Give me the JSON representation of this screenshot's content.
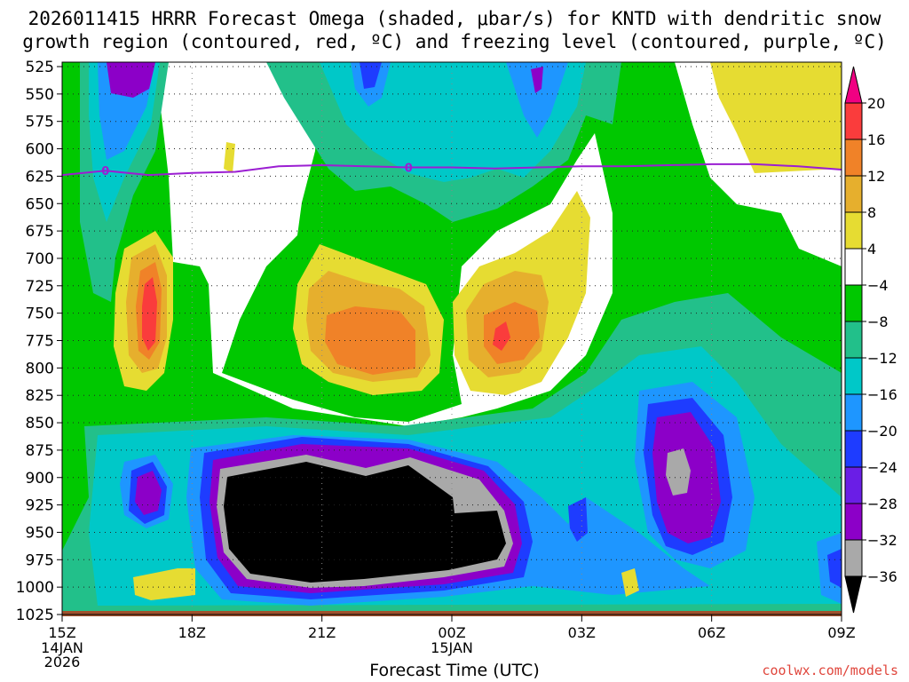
{
  "title_line1": "2026011415 HRRR Forecast Omega (shaded, μbar/s) for KNTD with dendritic snow",
  "title_line2": "growth region (contoured, red, ºC) and freezing level (contoured, purple, ºC)",
  "xlabel": "Forecast Time (UTC)",
  "credit": "coolwx.com/models",
  "chart_data": {
    "type": "heatmap",
    "title": "2026011415 HRRR Forecast Omega (shaded, μbar/s) for KNTD with dendritic snow growth region (contoured, red, ºC) and freezing level (contoured, purple, ºC)",
    "xlabel": "Forecast Time (UTC)",
    "ylabel": "",
    "y_inverted": true,
    "y_ticks": [
      525,
      550,
      575,
      600,
      625,
      650,
      675,
      700,
      725,
      750,
      775,
      800,
      825,
      850,
      875,
      900,
      925,
      950,
      975,
      1000,
      1025
    ],
    "x_hours": [
      0,
      1,
      2,
      3,
      4,
      5,
      6,
      7,
      8,
      9,
      10,
      11,
      12,
      13,
      14,
      15,
      16,
      17,
      18
    ],
    "x_ticks": [
      {
        "h": 0,
        "label": "15Z",
        "sub": [
          "14JAN",
          "2026"
        ]
      },
      {
        "h": 3,
        "label": "18Z",
        "sub": []
      },
      {
        "h": 6,
        "label": "21Z",
        "sub": []
      },
      {
        "h": 9,
        "label": "00Z",
        "sub": [
          "15JAN"
        ]
      },
      {
        "h": 12,
        "label": "03Z",
        "sub": []
      },
      {
        "h": 15,
        "label": "06Z",
        "sub": []
      },
      {
        "h": 18,
        "label": "09Z",
        "sub": []
      }
    ],
    "colorbar": {
      "levels": [
        -36,
        -32,
        -28,
        -24,
        -20,
        -16,
        -12,
        -8,
        -4,
        4,
        8,
        12,
        16,
        20
      ],
      "labels": [
        "20",
        "16",
        "12",
        "8",
        "4",
        "−4",
        "−8",
        "−12",
        "−16",
        "−20",
        "−24",
        "−28",
        "−32",
        "−36"
      ],
      "colors": [
        "#000000",
        "#a9a9a9",
        "#8c00c8",
        "#6a1ee6",
        "#1e3cff",
        "#1e96ff",
        "#00c8c8",
        "#22c08a",
        "#00c800",
        "#ffffff",
        "#e6dc32",
        "#e6af2d",
        "#f08228",
        "#fa3c3c",
        "#f00082"
      ]
    },
    "series": [
      {
        "name": "freezing level",
        "contour_value": 0,
        "x": [
          0,
          1,
          2,
          3,
          4,
          5,
          6,
          7,
          8,
          9,
          10,
          11,
          12,
          13,
          14,
          15,
          16,
          17,
          18
        ],
        "y": [
          624,
          620,
          624,
          622,
          621,
          616,
          615,
          616,
          617,
          617,
          618,
          617,
          616,
          616,
          615,
          614,
          614,
          616,
          619
        ]
      }
    ],
    "grid": true
  }
}
